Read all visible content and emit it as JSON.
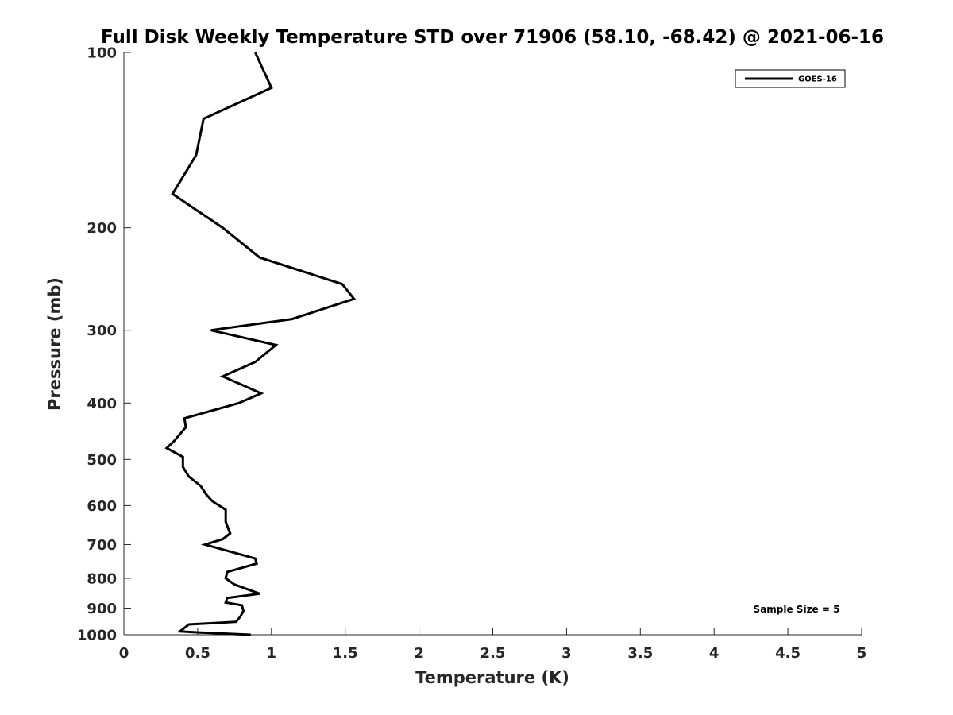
{
  "chart_data": {
    "type": "line",
    "title": "Full Disk Weekly Temperature STD over 71906 (58.10, -68.42) @ 2021-06-16",
    "xlabel": "Temperature (K)",
    "ylabel": "Pressure (mb)",
    "xlim": [
      0,
      5
    ],
    "ylim": [
      100,
      1000
    ],
    "y_scale": "log",
    "y_reversed": true,
    "x_ticks": [
      "0",
      "0.5",
      "1",
      "1.5",
      "2",
      "2.5",
      "3",
      "3.5",
      "4",
      "4.5",
      "5"
    ],
    "x_tick_values": [
      0,
      0.5,
      1,
      1.5,
      2,
      2.5,
      3,
      3.5,
      4,
      4.5,
      5
    ],
    "y_ticks": [
      "100",
      "200",
      "300",
      "400",
      "500",
      "600",
      "700",
      "800",
      "900",
      "1000"
    ],
    "y_tick_values": [
      100,
      200,
      300,
      400,
      500,
      600,
      700,
      800,
      900,
      1000
    ],
    "grid": false,
    "legend_position": "top-right",
    "annotation": "Sample Size = 5",
    "series": [
      {
        "name": "GOES-16",
        "color": "#000000",
        "x": [
          0.89,
          1.0,
          0.54,
          0.49,
          0.33,
          0.67,
          0.92,
          1.48,
          1.56,
          1.14,
          0.59,
          1.03,
          0.89,
          0.67,
          0.93,
          0.78,
          0.41,
          0.42,
          0.34,
          0.29,
          0.4,
          0.4,
          0.44,
          0.52,
          0.56,
          0.6,
          0.69,
          0.69,
          0.7,
          0.72,
          0.67,
          0.55,
          0.89,
          0.9,
          0.7,
          0.69,
          0.75,
          0.92,
          0.7,
          0.69,
          0.8,
          0.81,
          0.79,
          0.76,
          0.44,
          0.38,
          0.47,
          0.86
        ],
        "y": [
          100,
          115,
          130,
          150,
          175,
          200,
          225,
          250,
          265,
          287,
          300,
          318,
          340,
          360,
          385,
          400,
          425,
          440,
          465,
          478,
          495,
          515,
          535,
          555,
          575,
          590,
          610,
          640,
          650,
          670,
          685,
          700,
          740,
          755,
          780,
          800,
          820,
          850,
          865,
          880,
          890,
          910,
          930,
          950,
          960,
          987,
          990,
          1000
        ]
      }
    ]
  }
}
